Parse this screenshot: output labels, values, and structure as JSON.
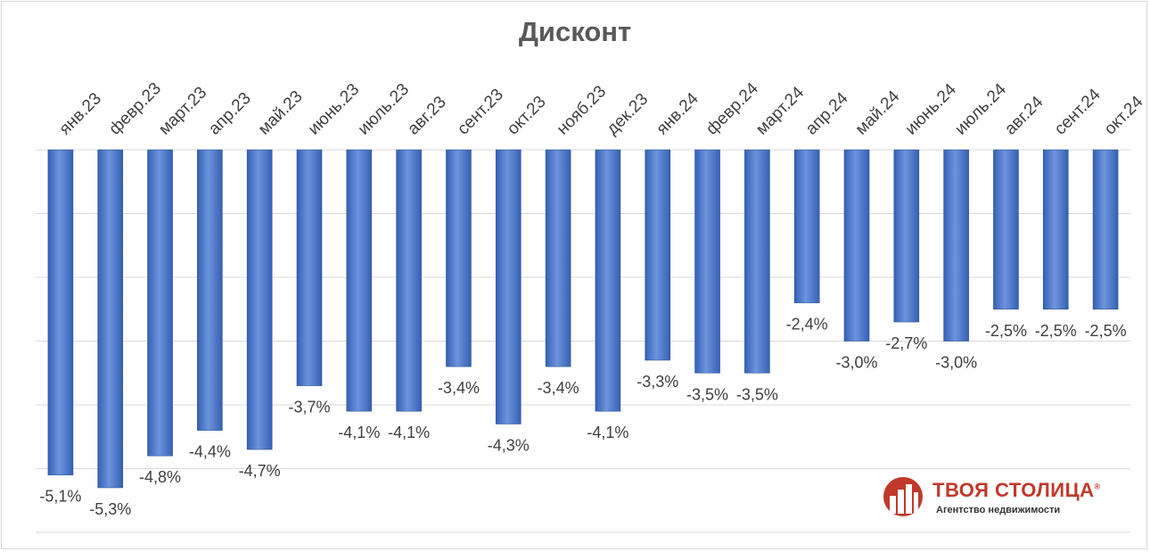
{
  "chart_data": {
    "type": "bar",
    "title": "Дисконт",
    "categories": [
      "янв.23",
      "февр.23",
      "март.23",
      "апр.23",
      "май.23",
      "июнь.23",
      "июль.23",
      "авг.23",
      "сент.23",
      "окт.23",
      "нояб.23",
      "дек.23",
      "янв.24",
      "февр.24",
      "март.24",
      "апр.24",
      "май.24",
      "июнь.24",
      "июль.24",
      "авг.24",
      "сент.24",
      "окт.24"
    ],
    "values": [
      -5.1,
      -5.3,
      -4.8,
      -4.4,
      -4.7,
      -3.7,
      -4.1,
      -4.1,
      -3.4,
      -4.3,
      -3.4,
      -4.1,
      -3.3,
      -3.5,
      -3.5,
      -2.4,
      -3.0,
      -2.7,
      -3.0,
      -2.5,
      -2.5,
      -2.5
    ],
    "data_labels": [
      "-5,1%",
      "-5,3%",
      "-4,8%",
      "-4,4%",
      "-4,7%",
      "-3,7%",
      "-4,1%",
      "-4,1%",
      "-3,4%",
      "-4,3%",
      "-3,4%",
      "-4,1%",
      "-3,3%",
      "-3,5%",
      "-3,5%",
      "-2,4%",
      "-3,0%",
      "-2,7%",
      "-3,0%",
      "-2,5%",
      "-2,5%",
      "-2,5%"
    ],
    "xlabel": "",
    "ylabel": "",
    "ylim": [
      -6,
      0
    ],
    "grid": true,
    "legend": "none",
    "colors": {
      "bar": "#4472c4",
      "grid": "#d9d9d9",
      "text": "#404040"
    }
  },
  "logo": {
    "name": "ТВОЯ СТОЛИЦА",
    "mark": "®",
    "subtitle": "Агентство недвижимости",
    "color": "#c0392b"
  }
}
